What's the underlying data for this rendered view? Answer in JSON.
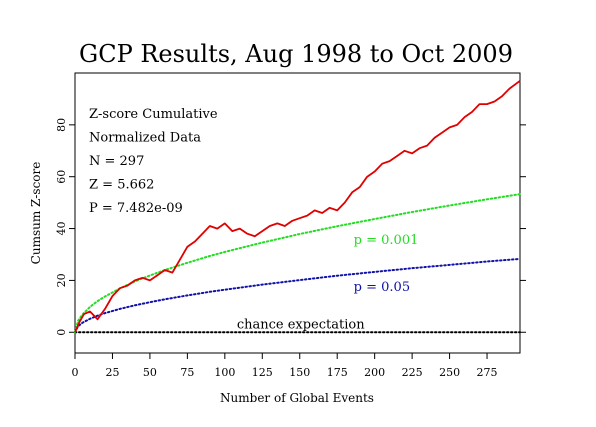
{
  "chart_data": {
    "type": "line",
    "title": "GCP Results, Aug 1998 to Oct 2009",
    "xlabel": "Number of Global Events",
    "ylabel": "Cumsum Z-score",
    "xlim": [
      0,
      297
    ],
    "ylim": [
      -8,
      100
    ],
    "xticks": [
      "0",
      "25",
      "50",
      "75",
      "100",
      "125",
      "150",
      "175",
      "200",
      "225",
      "250",
      "275"
    ],
    "xtick_values": [
      0,
      25,
      50,
      75,
      100,
      125,
      150,
      175,
      200,
      225,
      250,
      275
    ],
    "yticks": [
      "0",
      "20",
      "40",
      "60",
      "80"
    ],
    "ytick_values": [
      0,
      20,
      40,
      60,
      80
    ],
    "grid": false,
    "info_lines": [
      "Z-score Cumulative",
      "Normalized Data",
      "N = 297",
      "Z = 5.662",
      "P = 7.482e-09"
    ],
    "series": [
      {
        "color": "#e00000",
        "style": "solid",
        "x": [
          0,
          3,
          6,
          10,
          15,
          20,
          25,
          30,
          35,
          40,
          45,
          50,
          55,
          60,
          65,
          70,
          75,
          80,
          85,
          90,
          95,
          100,
          105,
          110,
          115,
          120,
          125,
          130,
          135,
          140,
          145,
          150,
          155,
          160,
          165,
          170,
          175,
          180,
          185,
          190,
          195,
          200,
          205,
          210,
          215,
          220,
          225,
          230,
          235,
          240,
          245,
          250,
          255,
          260,
          265,
          270,
          275,
          280,
          285,
          290,
          297
        ],
        "y": [
          0,
          4,
          7,
          8,
          5,
          9,
          14,
          17,
          18,
          20,
          21,
          20,
          22,
          24,
          23,
          28,
          33,
          35,
          38,
          41,
          40,
          42,
          39,
          40,
          38,
          37,
          39,
          41,
          42,
          41,
          43,
          44,
          45,
          47,
          46,
          48,
          47,
          50,
          54,
          56,
          60,
          62,
          65,
          66,
          68,
          70,
          69,
          71,
          72,
          75,
          77,
          79,
          80,
          83,
          85,
          88,
          88,
          89,
          91,
          94,
          97
        ]
      },
      {
        "color": "#22dd22",
        "style": "dotted",
        "x": [
          0,
          2,
          5,
          10,
          15,
          20,
          30,
          40,
          50,
          60,
          75,
          90,
          100,
          125,
          150,
          175,
          200,
          225,
          250,
          275,
          297
        ],
        "y": [
          0,
          4.4,
          6.9,
          9.8,
          12.0,
          13.8,
          16.9,
          19.6,
          21.9,
          24.0,
          26.8,
          29.4,
          31.0,
          34.6,
          37.9,
          40.9,
          43.7,
          46.4,
          48.9,
          51.3,
          53.3
        ]
      },
      {
        "color": "#1010aa",
        "style": "dotted",
        "x": [
          0,
          2,
          5,
          10,
          15,
          20,
          30,
          40,
          50,
          60,
          75,
          90,
          100,
          125,
          150,
          175,
          200,
          225,
          250,
          275,
          297
        ],
        "y": [
          0,
          2.3,
          3.7,
          5.2,
          6.4,
          7.4,
          9.0,
          10.4,
          11.6,
          12.7,
          14.2,
          15.6,
          16.4,
          18.4,
          20.1,
          21.8,
          23.3,
          24.7,
          26.0,
          27.3,
          28.3
        ]
      },
      {
        "color": "#000000",
        "style": "dotted",
        "x": [
          0,
          297
        ],
        "y": [
          0,
          0
        ]
      }
    ],
    "annotations": [
      {
        "text": "p = 0.001",
        "color": "#22dd22",
        "x": 186,
        "y": 34
      },
      {
        "text": "p = 0.05",
        "color": "#1010aa",
        "x": 186,
        "y": 16
      },
      {
        "text": "chance expectation",
        "color": "#000000",
        "x": 108,
        "y": 1.5
      }
    ]
  }
}
